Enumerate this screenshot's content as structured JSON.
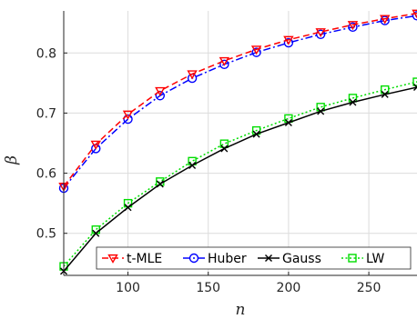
{
  "chart_data": {
    "type": "line",
    "title": "",
    "xlabel": "n",
    "ylabel": "β",
    "xlim": [
      60,
      280
    ],
    "ylim": [
      0.43,
      0.87
    ],
    "xticks": [
      100,
      150,
      200,
      250
    ],
    "yticks": [
      0.5,
      0.6,
      0.7,
      0.8
    ],
    "xtick_labels": [
      "100",
      "150",
      "200",
      "250"
    ],
    "ytick_labels": [
      "0.5",
      "0.6",
      "0.7",
      "0.8"
    ],
    "grid": true,
    "legend_position": "bottom-right",
    "x": [
      60,
      80,
      100,
      120,
      140,
      160,
      180,
      200,
      220,
      240,
      260,
      280
    ],
    "series": [
      {
        "name": "t-MLE",
        "color": "#ff0000",
        "line_style": "dashed",
        "marker": "triangle-down",
        "values": [
          0.578,
          0.648,
          0.698,
          0.737,
          0.765,
          0.787,
          0.806,
          0.822,
          0.835,
          0.847,
          0.857,
          0.866
        ]
      },
      {
        "name": "Huber",
        "color": "#0000ff",
        "line_style": "dashdot",
        "marker": "circle",
        "values": [
          0.575,
          0.641,
          0.69,
          0.729,
          0.758,
          0.781,
          0.801,
          0.817,
          0.831,
          0.843,
          0.854,
          0.862
        ]
      },
      {
        "name": "Gauss",
        "color": "#000000",
        "line_style": "solid",
        "marker": "x",
        "values": [
          0.437,
          0.5,
          0.543,
          0.582,
          0.613,
          0.641,
          0.665,
          0.684,
          0.703,
          0.718,
          0.731,
          0.743
        ]
      },
      {
        "name": "LW",
        "color": "#00dd00",
        "line_style": "dotted",
        "marker": "square",
        "values": [
          0.445,
          0.506,
          0.55,
          0.586,
          0.62,
          0.649,
          0.671,
          0.691,
          0.71,
          0.725,
          0.739,
          0.752
        ]
      }
    ]
  }
}
